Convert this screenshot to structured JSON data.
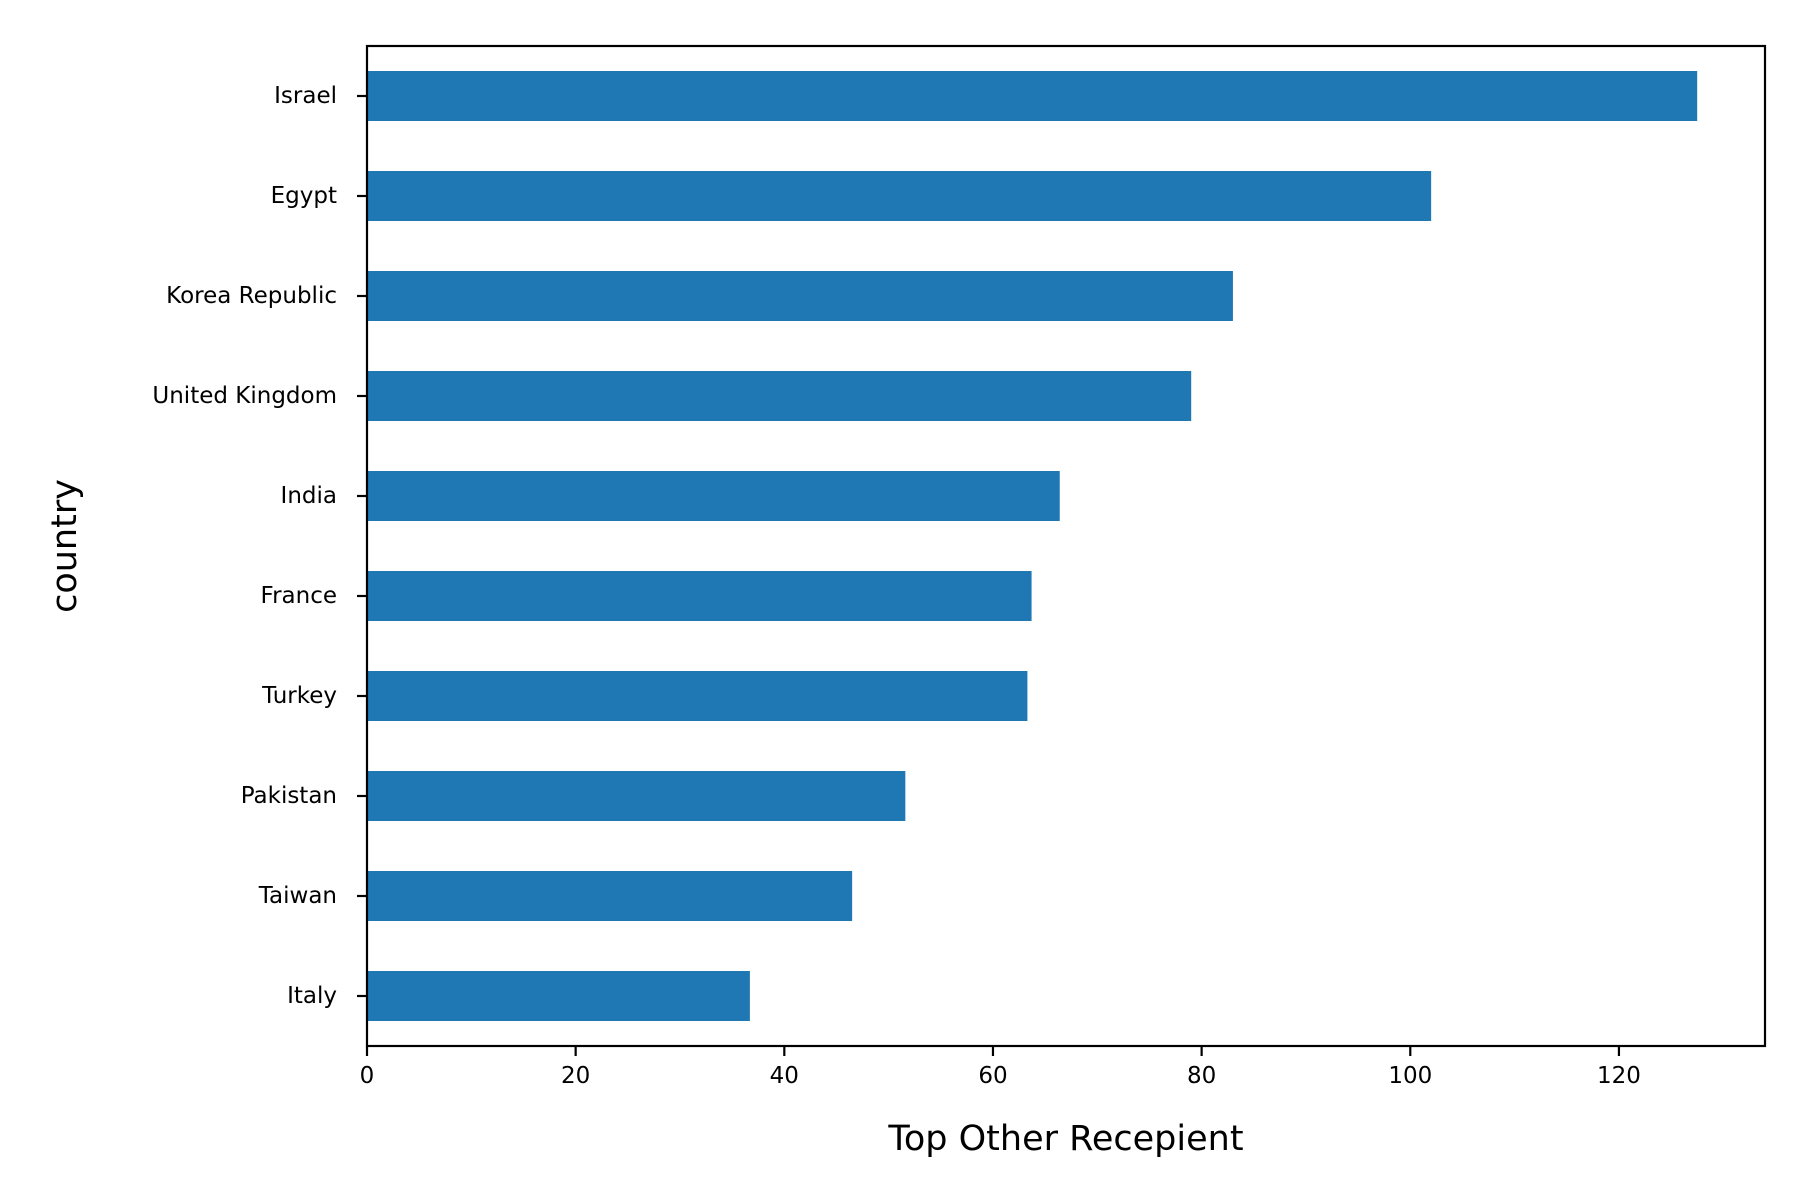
{
  "chart_data": {
    "type": "bar",
    "orientation": "horizontal",
    "categories": [
      "Israel",
      "Egypt",
      "Korea Republic",
      "United Kingdom",
      "India",
      "France",
      "Turkey",
      "Pakistan",
      "Taiwan",
      "Italy"
    ],
    "values": [
      127.5,
      102,
      83,
      79,
      66.4,
      63.7,
      63.3,
      51.6,
      46.5,
      36.7
    ],
    "xlabel": "Top Other Recepient",
    "ylabel": "country",
    "xlim": [
      0,
      134
    ],
    "xticks": [
      0,
      20,
      40,
      60,
      80,
      100,
      120
    ],
    "grid": false,
    "legend": "none",
    "colors": {
      "bar": "#1f77b4",
      "axis": "#000000",
      "background": "#ffffff"
    }
  }
}
